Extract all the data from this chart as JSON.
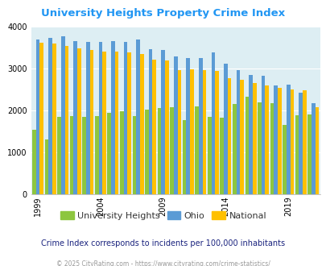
{
  "title": "University Heights Property Crime Index",
  "years": [
    1999,
    2000,
    2001,
    2002,
    2003,
    2004,
    2005,
    2006,
    2007,
    2008,
    2009,
    2010,
    2011,
    2012,
    2013,
    2014,
    2015,
    2016,
    2017,
    2018,
    2019,
    2020,
    2021
  ],
  "university_heights": [
    1530,
    1300,
    1840,
    1860,
    1840,
    1870,
    1950,
    1980,
    1870,
    2010,
    2060,
    2080,
    1760,
    2100,
    1840,
    1830,
    2160,
    2330,
    2190,
    2170,
    1660,
    1880,
    1900
  ],
  "ohio": [
    3700,
    3730,
    3760,
    3660,
    3640,
    3640,
    3660,
    3630,
    3700,
    3470,
    3450,
    3290,
    3250,
    3250,
    3380,
    3110,
    2960,
    2840,
    2830,
    2600,
    2610,
    2420,
    2170
  ],
  "national": [
    3620,
    3590,
    3530,
    3490,
    3440,
    3400,
    3400,
    3380,
    3340,
    3210,
    3190,
    2970,
    2980,
    2960,
    2940,
    2760,
    2730,
    2660,
    2600,
    2540,
    2500,
    2480,
    2080
  ],
  "uh_color": "#8dc63f",
  "ohio_color": "#5b9bd5",
  "national_color": "#ffc000",
  "bg_color": "#ddeef3",
  "ylim": [
    0,
    4000
  ],
  "yticks": [
    0,
    1000,
    2000,
    3000,
    4000
  ],
  "xlabel_ticks": [
    1999,
    2004,
    2009,
    2014,
    2019
  ],
  "legend_uh": "University Heights",
  "legend_ohio": "Ohio",
  "legend_national": "National",
  "subtitle": "Crime Index corresponds to incidents per 100,000 inhabitants",
  "footer": "© 2025 CityRating.com - https://www.cityrating.com/crime-statistics/",
  "title_color": "#2196f3",
  "legend_text_color": "#333333",
  "subtitle_color": "#1a237e",
  "footer_color": "#999999"
}
